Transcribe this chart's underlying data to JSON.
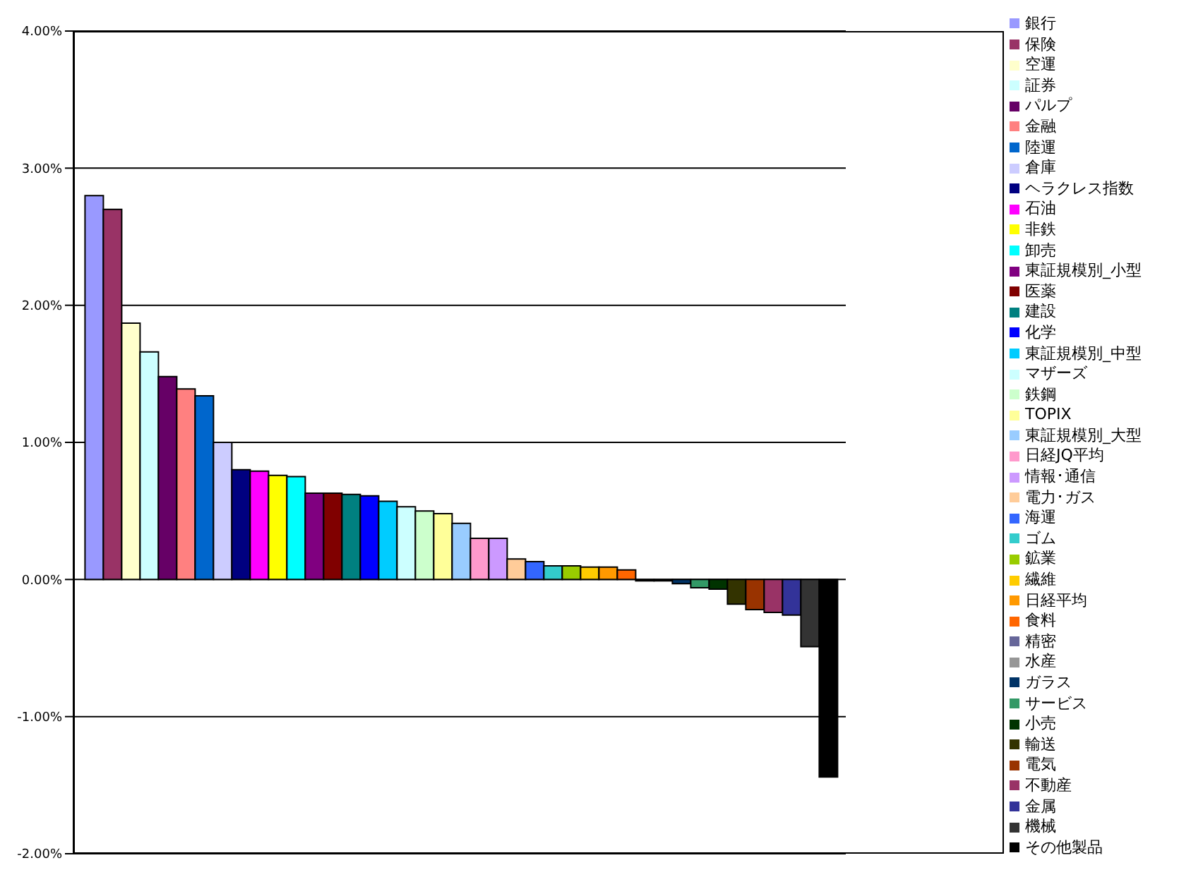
{
  "chart_data": {
    "type": "bar",
    "categories": [
      null
    ],
    "series": [
      {
        "name": "銀行",
        "color": "#9999ff",
        "values": [
          2.8
        ]
      },
      {
        "name": "保険",
        "color": "#993366",
        "values": [
          2.7
        ]
      },
      {
        "name": "空運",
        "color": "#ffffcc",
        "values": [
          1.87
        ]
      },
      {
        "name": "証券",
        "color": "#ccffff",
        "values": [
          1.66
        ]
      },
      {
        "name": "パルプ",
        "color": "#660066",
        "values": [
          1.48
        ]
      },
      {
        "name": "金融",
        "color": "#ff8080",
        "values": [
          1.39
        ]
      },
      {
        "name": "陸運",
        "color": "#0066cc",
        "values": [
          1.34
        ]
      },
      {
        "name": "倉庫",
        "color": "#ccccff",
        "values": [
          1.0
        ]
      },
      {
        "name": "ヘラクレス指数",
        "color": "#000080",
        "values": [
          0.8
        ]
      },
      {
        "name": "石油",
        "color": "#ff00ff",
        "values": [
          0.79
        ]
      },
      {
        "name": "非鉄",
        "color": "#ffff00",
        "values": [
          0.76
        ]
      },
      {
        "name": "卸売",
        "color": "#00ffff",
        "values": [
          0.75
        ]
      },
      {
        "name": "東証規模別_小型",
        "color": "#800080",
        "values": [
          0.63
        ]
      },
      {
        "name": "医薬",
        "color": "#800000",
        "values": [
          0.63
        ]
      },
      {
        "name": "建設",
        "color": "#008080",
        "values": [
          0.62
        ]
      },
      {
        "name": "化学",
        "color": "#0000ff",
        "values": [
          0.61
        ]
      },
      {
        "name": "東証規模別_中型",
        "color": "#00ccff",
        "values": [
          0.57
        ]
      },
      {
        "name": "マザーズ",
        "color": "#ccffff",
        "values": [
          0.53
        ]
      },
      {
        "name": "鉄鋼",
        "color": "#ccffcc",
        "values": [
          0.5
        ]
      },
      {
        "name": "TOPIX",
        "color": "#ffff99",
        "values": [
          0.48
        ]
      },
      {
        "name": "東証規模別_大型",
        "color": "#99ccff",
        "values": [
          0.41
        ]
      },
      {
        "name": "日経JQ平均",
        "color": "#ff99cc",
        "values": [
          0.3
        ]
      },
      {
        "name": "情報･通信",
        "color": "#cc99ff",
        "values": [
          0.3
        ]
      },
      {
        "name": "電力･ガス",
        "color": "#ffcc99",
        "values": [
          0.15
        ]
      },
      {
        "name": "海運",
        "color": "#3366ff",
        "values": [
          0.13
        ]
      },
      {
        "name": "ゴム",
        "color": "#33cccc",
        "values": [
          0.1
        ]
      },
      {
        "name": "鉱業",
        "color": "#99cc00",
        "values": [
          0.1
        ]
      },
      {
        "name": "繊維",
        "color": "#ffcc00",
        "values": [
          0.09
        ]
      },
      {
        "name": "日経平均",
        "color": "#ff9900",
        "values": [
          0.09
        ]
      },
      {
        "name": "食料",
        "color": "#ff6600",
        "values": [
          0.07
        ]
      },
      {
        "name": "精密",
        "color": "#666699",
        "values": [
          -0.01
        ]
      },
      {
        "name": "水産",
        "color": "#969696",
        "values": [
          -0.01
        ]
      },
      {
        "name": "ガラス",
        "color": "#003366",
        "values": [
          -0.03
        ]
      },
      {
        "name": "サービス",
        "color": "#339966",
        "values": [
          -0.06
        ]
      },
      {
        "name": "小売",
        "color": "#003300",
        "values": [
          -0.07
        ]
      },
      {
        "name": "輸送",
        "color": "#333300",
        "values": [
          -0.18
        ]
      },
      {
        "name": "電気",
        "color": "#993300",
        "values": [
          -0.22
        ]
      },
      {
        "name": "不動産",
        "color": "#993366",
        "values": [
          -0.24
        ]
      },
      {
        "name": "金属",
        "color": "#333399",
        "values": [
          -0.26
        ]
      },
      {
        "name": "機械",
        "color": "#333333",
        "values": [
          -0.49
        ]
      },
      {
        "name": "その他製品",
        "color": "#000000",
        "values": [
          -1.44
        ]
      }
    ],
    "ylim": [
      -2,
      4
    ],
    "yticks": [
      {
        "value": -2,
        "label": "-2.00%"
      },
      {
        "value": -1,
        "label": "-1.00%"
      },
      {
        "value": 0,
        "label": "0.00%"
      },
      {
        "value": 1,
        "label": "1.00%"
      },
      {
        "value": 2,
        "label": "2.00%"
      },
      {
        "value": 3,
        "label": "3.00%"
      },
      {
        "value": 4,
        "label": "4.00%"
      }
    ],
    "grid": "y",
    "legend": "right",
    "tick_labels": "y"
  }
}
